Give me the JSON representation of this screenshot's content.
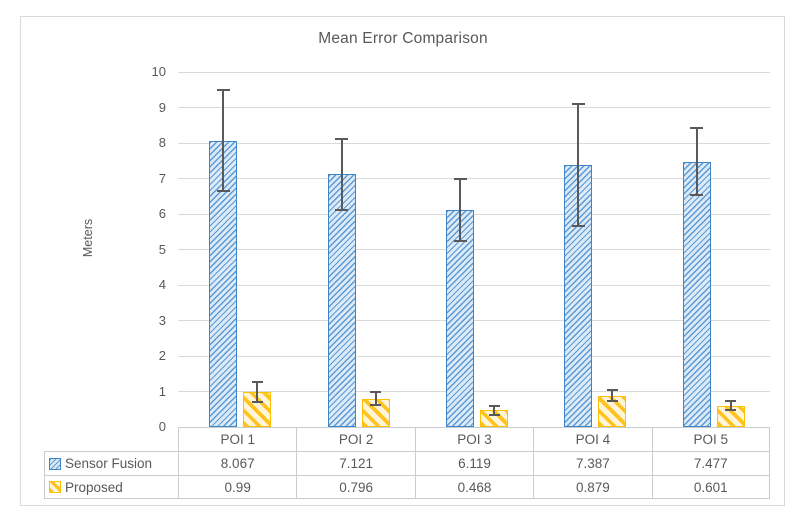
{
  "chart_data": {
    "type": "bar",
    "title": "Mean Error Comparison",
    "xlabel": "",
    "ylabel": "Meters",
    "ylim": [
      0,
      10
    ],
    "ytick_step": 1,
    "grid": true,
    "legend_position": "data-table-left",
    "categories": [
      "POI 1",
      "POI 2",
      "POI 3",
      "POI 4",
      "POI 5"
    ],
    "series": [
      {
        "name": "Sensor Fusion",
        "values": [
          8.067,
          7.121,
          6.119,
          7.387,
          7.477
        ],
        "display_values": [
          "8.067",
          "7.121",
          "6.119",
          "7.387",
          "7.477"
        ],
        "error_bars": [
          1.43,
          1.0,
          0.87,
          1.72,
          0.95
        ],
        "pattern": "diagonal-up-hatch",
        "fill_color": "#DCE9F7",
        "hatch_color": "#5B9BD5",
        "border_color": "#3D85C6"
      },
      {
        "name": "Proposed",
        "values": [
          0.99,
          0.796,
          0.468,
          0.879,
          0.601
        ],
        "display_values": [
          "0.99",
          "0.796",
          "0.468",
          "0.879",
          "0.601"
        ],
        "error_bars": [
          0.28,
          0.18,
          0.12,
          0.15,
          0.12
        ],
        "pattern": "diagonal-down-hatch",
        "fill_color": "#FFF5D8",
        "hatch_color": "#FFC21E",
        "border_color": "#FFC000"
      }
    ],
    "error_bar_color": "#595959",
    "y_tick_labels": [
      "0",
      "1",
      "2",
      "3",
      "4",
      "5",
      "6",
      "7",
      "8",
      "9",
      "10"
    ]
  },
  "colors": {
    "title_text": "#595959",
    "axis_text": "#595959",
    "gridline": "#D9D9D9",
    "axis_line": "#BFBFBF",
    "table_border": "#C9CDD2",
    "frame_border": "#D9D9D9",
    "background": "#FFFFFF"
  }
}
